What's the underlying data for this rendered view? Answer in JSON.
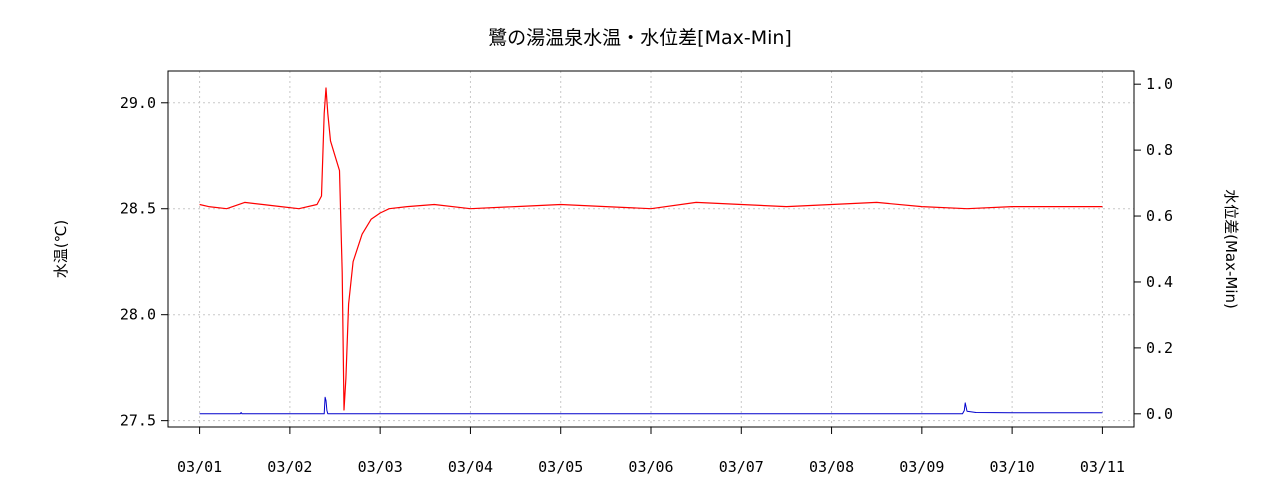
{
  "chart_data": {
    "type": "line",
    "title": "鷺の湯温泉水温・水位差[Max-Min]",
    "ylabel_left": "水温(℃)",
    "ylabel_right": "水位差(Max-Min)",
    "xlabel": "",
    "x_tick_labels": [
      "03/01",
      "03/02",
      "03/03",
      "03/04",
      "03/05",
      "03/06",
      "03/07",
      "03/08",
      "03/09",
      "03/10",
      "03/11"
    ],
    "xlim": [
      "03/01",
      "03/11"
    ],
    "ylim_left": [
      27.5,
      29.0
    ],
    "yticks_left": [
      27.5,
      28.0,
      28.5,
      29.0
    ],
    "ylim_right": [
      0.0,
      1.0
    ],
    "yticks_right": [
      0.0,
      0.2,
      0.4,
      0.6,
      0.8,
      1.0
    ],
    "grid": true,
    "series": [
      {
        "axis": "left",
        "color": "#ff0000",
        "x_unit": "days from 03/01",
        "x": [
          0,
          0.1,
          0.3,
          0.5,
          0.7,
          0.9,
          1.1,
          1.3,
          1.35,
          1.38,
          1.4,
          1.42,
          1.45,
          1.5,
          1.55,
          1.58,
          1.6,
          1.62,
          1.65,
          1.7,
          1.8,
          1.9,
          2.0,
          2.1,
          2.3,
          2.6,
          3.0,
          3.5,
          4.0,
          4.5,
          5.0,
          5.5,
          6.0,
          6.5,
          7.0,
          7.5,
          8.0,
          8.5,
          9.0,
          9.5,
          10.0
        ],
        "values": [
          28.52,
          28.51,
          28.5,
          28.53,
          28.52,
          28.51,
          28.5,
          28.52,
          28.56,
          28.95,
          29.07,
          28.95,
          28.82,
          28.75,
          28.68,
          28.2,
          27.55,
          27.7,
          28.05,
          28.25,
          28.38,
          28.45,
          28.48,
          28.5,
          28.51,
          28.52,
          28.5,
          28.51,
          28.52,
          28.51,
          28.5,
          28.53,
          28.52,
          28.51,
          28.52,
          28.53,
          28.51,
          28.5,
          28.51,
          28.51,
          28.51
        ]
      },
      {
        "axis": "right",
        "color": "#0000cc",
        "x_unit": "days from 03/01",
        "x": [
          0,
          0.45,
          0.46,
          0.47,
          1.38,
          1.39,
          1.4,
          1.41,
          1.42,
          5.0,
          8.45,
          8.47,
          8.48,
          8.5,
          8.6,
          9.0,
          9.3,
          10.0
        ],
        "values": [
          0.0,
          0.0,
          0.004,
          0.0,
          0.0,
          0.05,
          0.04,
          0.01,
          0.0,
          0.0,
          0.0,
          0.01,
          0.033,
          0.008,
          0.004,
          0.003,
          0.003,
          0.003
        ]
      }
    ]
  }
}
